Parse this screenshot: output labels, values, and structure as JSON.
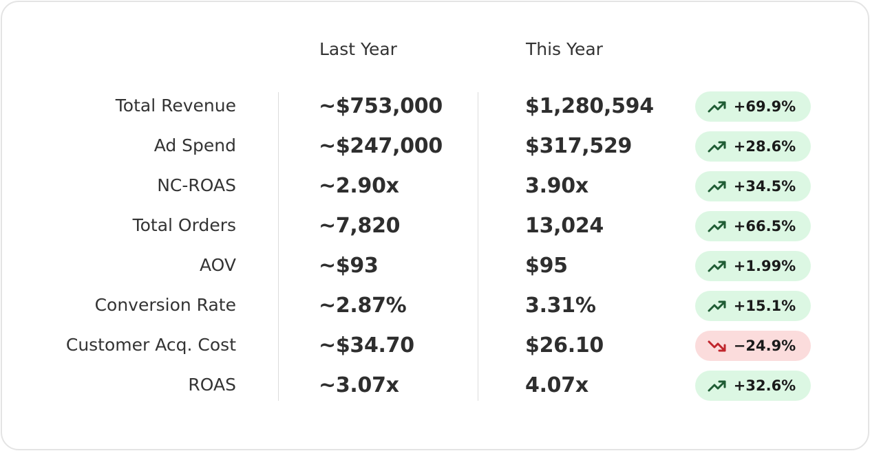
{
  "headers": {
    "last_year": "Last Year",
    "this_year": "This Year"
  },
  "rows": [
    {
      "label": "Total Revenue",
      "last_year": "~$753,000",
      "this_year": "$1,280,594",
      "change": "+69.9%",
      "trend": "up"
    },
    {
      "label": "Ad Spend",
      "last_year": "~$247,000",
      "this_year": "$317,529",
      "change": "+28.6%",
      "trend": "up"
    },
    {
      "label": "NC-ROAS",
      "last_year": "~2.90x",
      "this_year": "3.90x",
      "change": "+34.5%",
      "trend": "up"
    },
    {
      "label": "Total Orders",
      "last_year": "~7,820",
      "this_year": "13,024",
      "change": "+66.5%",
      "trend": "up"
    },
    {
      "label": "AOV",
      "last_year": "~$93",
      "this_year": "$95",
      "change": "+1.99%",
      "trend": "up"
    },
    {
      "label": "Conversion Rate",
      "last_year": "~2.87%",
      "this_year": "3.31%",
      "change": "+15.1%",
      "trend": "up"
    },
    {
      "label": "Customer Acq. Cost",
      "last_year": "~$34.70",
      "this_year": "$26.10",
      "change": "−24.9%",
      "trend": "down"
    },
    {
      "label": "ROAS",
      "last_year": "~3.07x",
      "this_year": "4.07x",
      "change": "+32.6%",
      "trend": "up"
    }
  ],
  "colors": {
    "up_badge_bg": "#dcf7e3",
    "up_icon": "#1f5c34",
    "down_badge_bg": "#fbdcdc",
    "down_icon": "#c0262d"
  },
  "icons": {
    "up": "trending-up-icon",
    "down": "trending-down-icon"
  }
}
